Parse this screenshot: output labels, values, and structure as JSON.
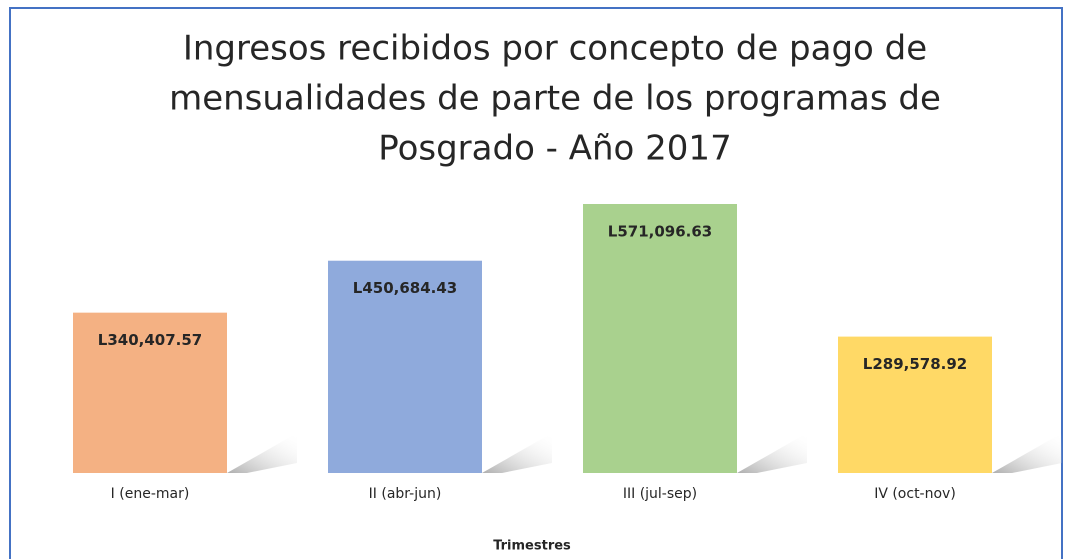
{
  "chart_data": {
    "type": "bar",
    "title": [
      "Ingresos recibidos por concepto de pago de",
      "mensualidades de parte de los programas de",
      "Posgrado - Año 2017"
    ],
    "x_label": "Trimestres",
    "categories": [
      "I (ene-mar)",
      "II (abr-jun)",
      "III (jul-sep)",
      "IV (oct-nov)"
    ],
    "values": [
      340407.57,
      450684.43,
      571096.63,
      289578.92
    ],
    "value_labels": [
      "L340,407.57",
      "L450,684.43",
      "L571,096.63",
      "L289,578.92"
    ],
    "colors": [
      "#f4b183",
      "#8faadc",
      "#a9d18e",
      "#ffd966"
    ]
  }
}
